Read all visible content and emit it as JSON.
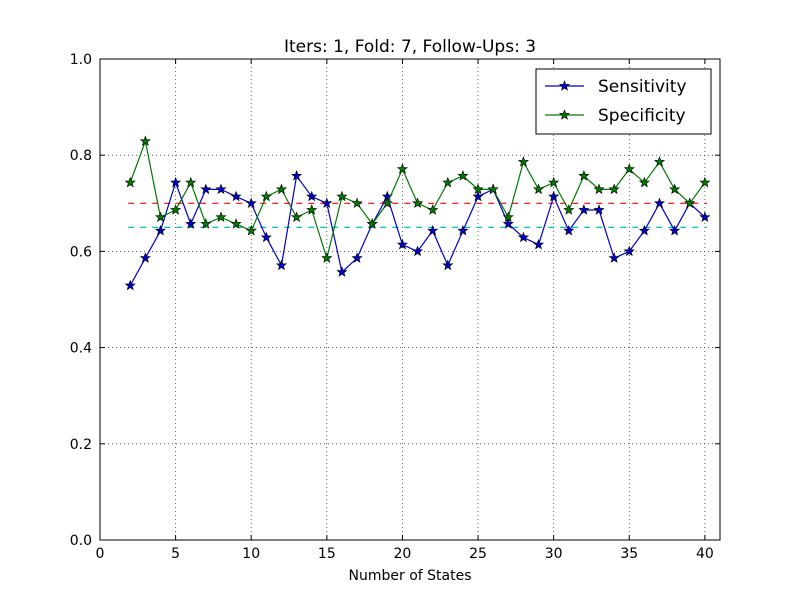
{
  "chart_data": {
    "type": "line",
    "title": "Iters: 1, Fold: 7, Follow-Ups: 3",
    "xlabel": "Number of States",
    "ylabel": "",
    "xlim": [
      0,
      41
    ],
    "ylim": [
      0.0,
      1.0
    ],
    "x_ticks": [
      0,
      5,
      10,
      15,
      20,
      25,
      30,
      35,
      40
    ],
    "y_ticks": [
      0.0,
      0.2,
      0.4,
      0.6,
      0.8,
      1.0
    ],
    "y_tick_labels": [
      "0.0",
      "0.2",
      "0.4",
      "0.6",
      "0.8",
      "1.0"
    ],
    "grid": true,
    "legend_position": "top-right",
    "x": [
      2,
      3,
      4,
      5,
      6,
      7,
      8,
      9,
      10,
      11,
      12,
      13,
      14,
      15,
      16,
      17,
      18,
      19,
      20,
      21,
      22,
      23,
      24,
      25,
      26,
      27,
      28,
      29,
      30,
      31,
      32,
      33,
      34,
      35,
      36,
      37,
      38,
      39,
      40
    ],
    "series": [
      {
        "name": "Sensitivity",
        "color": "#0000cc",
        "marker": "star",
        "values": [
          0.529,
          0.586,
          0.643,
          0.743,
          0.657,
          0.729,
          0.729,
          0.714,
          0.7,
          0.629,
          0.571,
          0.757,
          0.714,
          0.7,
          0.557,
          0.586,
          0.657,
          0.714,
          0.614,
          0.6,
          0.643,
          0.571,
          0.643,
          0.714,
          0.729,
          0.657,
          0.629,
          0.614,
          0.714,
          0.643,
          0.686,
          0.686,
          0.586,
          0.6,
          0.643,
          0.7,
          0.643,
          0.7,
          0.671
        ]
      },
      {
        "name": "Specificity",
        "color": "#007a00",
        "marker": "star",
        "values": [
          0.743,
          0.829,
          0.671,
          0.686,
          0.743,
          0.657,
          0.671,
          0.657,
          0.643,
          0.714,
          0.729,
          0.671,
          0.686,
          0.586,
          0.714,
          0.7,
          0.657,
          0.7,
          0.771,
          0.7,
          0.686,
          0.743,
          0.757,
          0.729,
          0.729,
          0.671,
          0.786,
          0.729,
          0.743,
          0.686,
          0.757,
          0.729,
          0.729,
          0.771,
          0.743,
          0.786,
          0.729,
          0.7,
          0.743
        ]
      }
    ],
    "reference_lines": [
      {
        "y": 0.7,
        "color": "#ff0000",
        "style": "dashed"
      },
      {
        "y": 0.65,
        "color": "#00bfbf",
        "style": "dashed"
      }
    ]
  }
}
